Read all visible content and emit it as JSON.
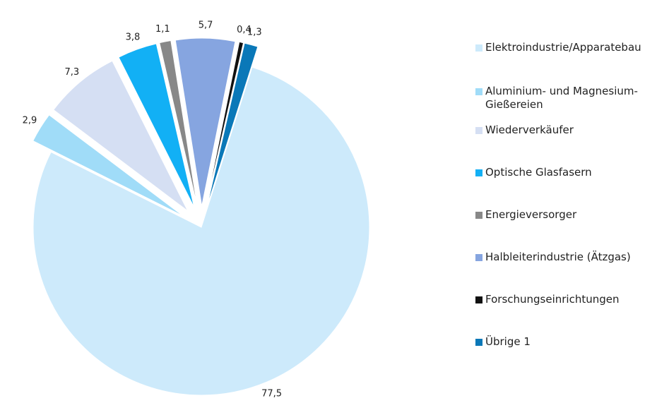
{
  "chart_data": {
    "type": "pie",
    "categories": [
      "Elektroindustrie/Apparatebau",
      "Aluminium- und Magnesium-Gießereien",
      "Wiederverkäufer",
      "Optische Glasfasern",
      "Energieversorger",
      "Halbleiterindustrie (Ätzgas)",
      "Forschungseinrichtungen",
      "Übrige 1"
    ],
    "values": [
      77.5,
      2.9,
      7.3,
      3.8,
      1.1,
      5.7,
      0.4,
      1.3
    ],
    "value_labels": [
      "77,5",
      "2,9",
      "7,3",
      "3,8",
      "1,1",
      "5,7",
      "0,4",
      "1,3"
    ],
    "colors": [
      "#cdeafb",
      "#a0dcf8",
      "#d5dff3",
      "#12b0f5",
      "#888888",
      "#86a5e0",
      "#111111",
      "#0a78b8"
    ],
    "legend": "right"
  }
}
